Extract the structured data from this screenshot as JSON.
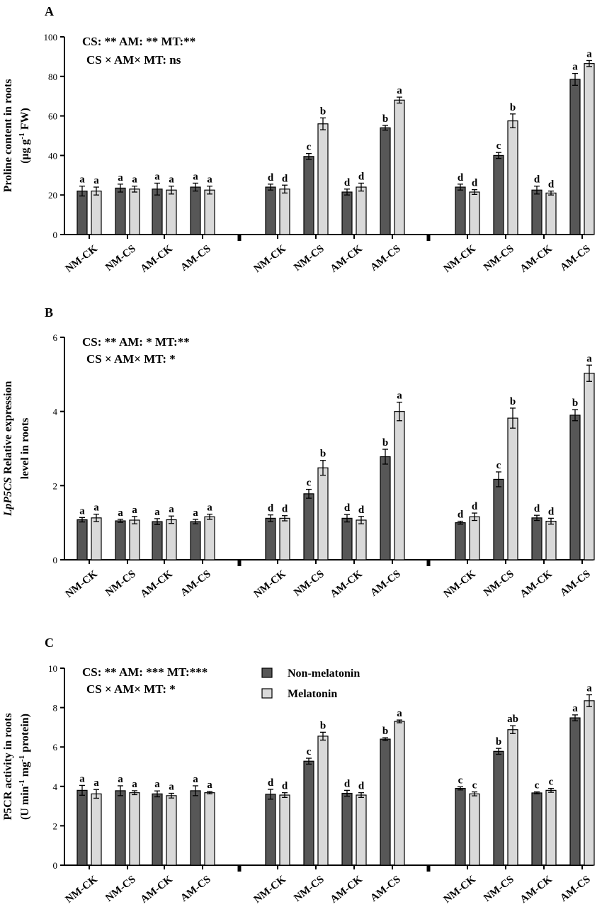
{
  "colors": {
    "non_melatonin": "#575757",
    "melatonin": "#d9d9d9",
    "axis": "#000000"
  },
  "legend": [
    {
      "name": "Non-melatonin",
      "color": "#575757"
    },
    {
      "name": "Melatonin",
      "color": "#d9d9d9"
    }
  ],
  "chart_data": [
    {
      "panel": "A",
      "type": "bar",
      "ylabel_lines": [
        "Proline content in roots",
        "(μg g",
        "-1",
        " FW)"
      ],
      "ylim": [
        0,
        100
      ],
      "yticks": [
        0,
        20,
        40,
        60,
        80,
        100
      ],
      "stats": [
        "CS: **  AM: ** MT:**",
        "CS × AM× MT: ns"
      ],
      "groups": [
        {
          "categories": [
            "NM-CK",
            "NM-CS",
            "AM-CK",
            "AM-CS"
          ],
          "series": [
            {
              "name": "Non-melatonin",
              "values": [
                22,
                23.5,
                23,
                24
              ],
              "errors": [
                2.5,
                2,
                3,
                2
              ],
              "letters": [
                "a",
                "a",
                "a",
                "a"
              ]
            },
            {
              "name": "Melatonin",
              "values": [
                22,
                23,
                22.5,
                22.5
              ],
              "errors": [
                2,
                1.5,
                2,
                2
              ],
              "letters": [
                "a",
                "a",
                "a",
                "a"
              ]
            }
          ]
        },
        {
          "categories": [
            "NM-CK",
            "NM-CS",
            "AM-CK",
            "AM-CS"
          ],
          "series": [
            {
              "name": "Non-melatonin",
              "values": [
                24,
                39.5,
                21.5,
                54
              ],
              "errors": [
                1.5,
                1.5,
                1.5,
                1.2
              ],
              "letters": [
                "d",
                "c",
                "d",
                "b"
              ]
            },
            {
              "name": "Melatonin",
              "values": [
                23,
                56,
                24,
                68
              ],
              "errors": [
                2,
                3,
                2,
                1.5
              ],
              "letters": [
                "d",
                "b",
                "d",
                "a"
              ]
            }
          ]
        },
        {
          "categories": [
            "NM-CK",
            "NM-CS",
            "AM-CK",
            "AM-CS"
          ],
          "series": [
            {
              "name": "Non-melatonin",
              "values": [
                24,
                40,
                22.5,
                78.5
              ],
              "errors": [
                1.5,
                1.5,
                2,
                3
              ],
              "letters": [
                "d",
                "c",
                "d",
                "a"
              ]
            },
            {
              "name": "Melatonin",
              "values": [
                21.5,
                57.5,
                21,
                86.5
              ],
              "errors": [
                1.2,
                3.5,
                1,
                1.5
              ],
              "letters": [
                "d",
                "b",
                "d",
                "a"
              ]
            }
          ]
        }
      ]
    },
    {
      "panel": "B",
      "type": "bar",
      "ylabel_lines": [
        "LpP5CS",
        " Relative expression",
        "level in roots"
      ],
      "ylim": [
        0,
        6
      ],
      "yticks": [
        0,
        2,
        4,
        6
      ],
      "stats": [
        "CS: **  AM: * MT:**",
        "CS × AM× MT: *"
      ],
      "groups": [
        {
          "categories": [
            "NM-CK",
            "NM-CS",
            "AM-CK",
            "AM-CS"
          ],
          "series": [
            {
              "name": "Non-melatonin",
              "values": [
                1.08,
                1.05,
                1.03,
                1.03
              ],
              "errors": [
                0.06,
                0.04,
                0.08,
                0.06
              ],
              "letters": [
                "a",
                "a",
                "a",
                "a"
              ]
            },
            {
              "name": "Melatonin",
              "values": [
                1.13,
                1.07,
                1.08,
                1.16
              ],
              "errors": [
                0.1,
                0.1,
                0.1,
                0.07
              ],
              "letters": [
                "a",
                "a",
                "a",
                "a"
              ]
            }
          ]
        },
        {
          "categories": [
            "NM-CK",
            "NM-CS",
            "AM-CK",
            "AM-CS"
          ],
          "series": [
            {
              "name": "Non-melatonin",
              "values": [
                1.12,
                1.78,
                1.12,
                2.78
              ],
              "errors": [
                0.09,
                0.12,
                0.1,
                0.2
              ],
              "letters": [
                "d",
                "c",
                "d",
                "b"
              ]
            },
            {
              "name": "Melatonin",
              "values": [
                1.12,
                2.48,
                1.07,
                4.0
              ],
              "errors": [
                0.07,
                0.2,
                0.1,
                0.25
              ],
              "letters": [
                "d",
                "b",
                "d",
                "a"
              ]
            }
          ]
        },
        {
          "categories": [
            "NM-CK",
            "NM-CS",
            "AM-CK",
            "AM-CS"
          ],
          "series": [
            {
              "name": "Non-melatonin",
              "values": [
                1.0,
                2.17,
                1.13,
                3.9
              ],
              "errors": [
                0.04,
                0.2,
                0.07,
                0.15
              ],
              "letters": [
                "d",
                "c",
                "d",
                "b"
              ]
            },
            {
              "name": "Melatonin",
              "values": [
                1.16,
                3.82,
                1.04,
                5.03
              ],
              "errors": [
                0.1,
                0.27,
                0.08,
                0.22
              ],
              "letters": [
                "d",
                "b",
                "d",
                "a"
              ]
            }
          ]
        }
      ]
    },
    {
      "panel": "C",
      "type": "bar",
      "ylabel_lines": [
        "P5CR activity in roots",
        "(U min",
        "-1",
        " mg",
        "-1",
        " protein)"
      ],
      "ylim": [
        0,
        10
      ],
      "yticks": [
        0,
        2,
        4,
        6,
        8,
        10
      ],
      "stats": [
        "CS: **  AM: *** MT:***",
        "CS × AM× MT: *"
      ],
      "groups": [
        {
          "categories": [
            "NM-CK",
            "NM-CS",
            "AM-CK",
            "AM-CS"
          ],
          "series": [
            {
              "name": "Non-melatonin",
              "values": [
                3.8,
                3.78,
                3.62,
                3.78
              ],
              "errors": [
                0.25,
                0.25,
                0.15,
                0.25
              ],
              "letters": [
                "a",
                "a",
                "a",
                "a"
              ]
            },
            {
              "name": "Melatonin",
              "values": [
                3.62,
                3.68,
                3.53,
                3.68
              ],
              "errors": [
                0.22,
                0.1,
                0.12,
                0.06
              ],
              "letters": [
                "a",
                "a",
                "a",
                "a"
              ]
            }
          ]
        },
        {
          "categories": [
            "NM-CK",
            "NM-CS",
            "AM-CK",
            "AM-CS"
          ],
          "series": [
            {
              "name": "Non-melatonin",
              "values": [
                3.6,
                5.28,
                3.65,
                6.4
              ],
              "errors": [
                0.25,
                0.15,
                0.15,
                0.07
              ],
              "letters": [
                "d",
                "c",
                "d",
                "b"
              ]
            },
            {
              "name": "Melatonin",
              "values": [
                3.56,
                6.55,
                3.56,
                7.3
              ],
              "errors": [
                0.12,
                0.2,
                0.12,
                0.07
              ],
              "letters": [
                "d",
                "b",
                "d",
                "a"
              ]
            }
          ]
        },
        {
          "categories": [
            "NM-CK",
            "NM-CS",
            "AM-CK",
            "AM-CS"
          ],
          "series": [
            {
              "name": "Non-melatonin",
              "values": [
                3.9,
                5.78,
                3.67,
                7.48
              ],
              "errors": [
                0.08,
                0.15,
                0.05,
                0.15
              ],
              "letters": [
                "c",
                "b",
                "c",
                "a"
              ]
            },
            {
              "name": "Melatonin",
              "values": [
                3.62,
                6.88,
                3.8,
                8.35
              ],
              "errors": [
                0.1,
                0.2,
                0.1,
                0.3
              ],
              "letters": [
                "c",
                "ab",
                "c",
                "a"
              ]
            }
          ]
        }
      ]
    }
  ]
}
